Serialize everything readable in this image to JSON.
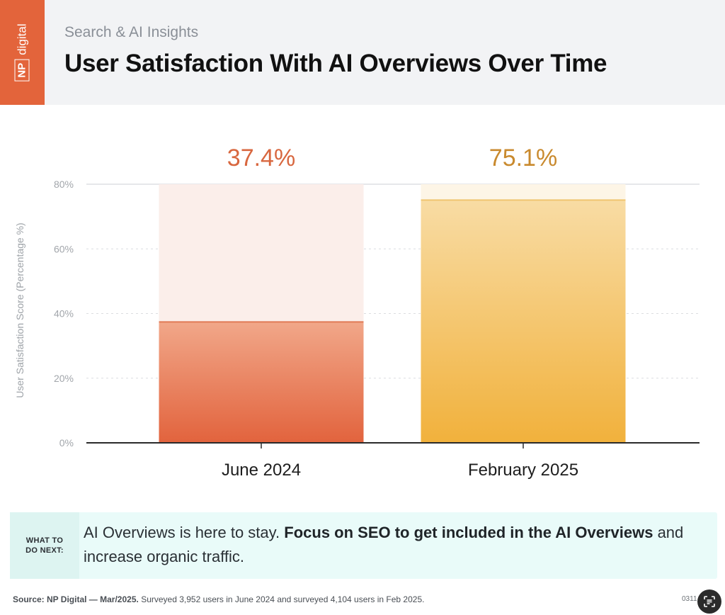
{
  "header": {
    "brand_np": "NP",
    "brand_digital": "digital",
    "subtitle": "Search & AI Insights",
    "title": "User Satisfaction With AI Overviews Over Time"
  },
  "colors": {
    "brand_orange": "#e3643b",
    "bar1_top": "#f1a789",
    "bar1_bottom": "#e2633d",
    "bar1_bg": "#fbeeea",
    "bar2_top": "#f8dca4",
    "bar2_bottom": "#f1b13c",
    "bar2_bg": "#fdf5e6",
    "label1": "#d8673f",
    "label2": "#c98a2e"
  },
  "chart_data": {
    "type": "bar",
    "categories": [
      "June 2024",
      "February 2025"
    ],
    "values": [
      37.4,
      75.1
    ],
    "value_labels": [
      "37.4%",
      "75.1%"
    ],
    "ylabel": "User Satisfaction Score (Percentage %)",
    "ylim": [
      0,
      80
    ],
    "yticks": [
      0,
      20,
      40,
      60,
      80
    ],
    "ytick_labels": [
      "0%",
      "20%",
      "40%",
      "60%",
      "80%"
    ],
    "grid": true
  },
  "callout": {
    "label_line1": "WHAT TO",
    "label_line2": "DO NEXT:",
    "text_plain": "AI Overviews is here to stay.",
    "text_bold": "Focus on SEO to get included in the AI Overviews",
    "text_end": "and increase organic traffic."
  },
  "footer": {
    "source_bold": "Source: NP Digital — Mar/2025.",
    "source_text": "Surveyed 3,952 users in June 2024 and surveyed 4,104 users in Feb 2025.",
    "code": "0311"
  },
  "icons": {
    "corner": "scan-text-icon"
  }
}
